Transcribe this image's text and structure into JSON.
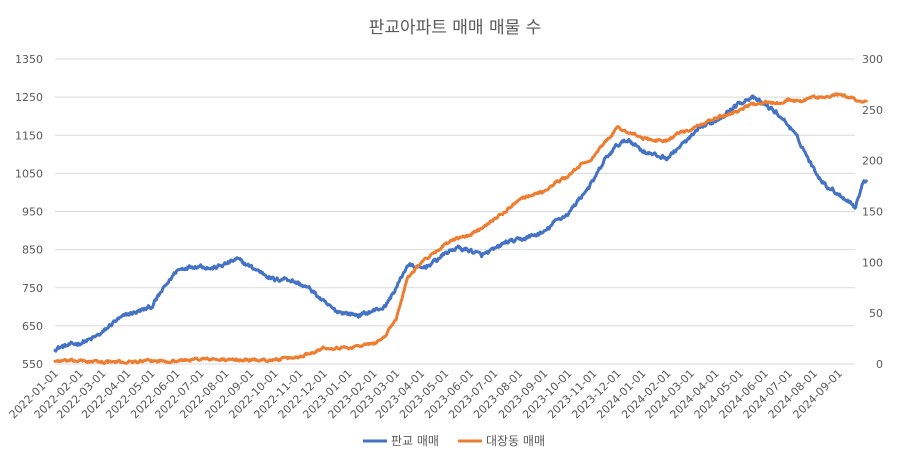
{
  "chart_data": {
    "type": "line",
    "title": "판교아파트 매매 매물 수",
    "xlabel": "",
    "ylabel": "",
    "x_ticks": [
      "2022-01-01",
      "2022-02-01",
      "2022-03-01",
      "2022-04-01",
      "2022-05-01",
      "2022-06-01",
      "2022-07-01",
      "2022-08-01",
      "2022-09-01",
      "2022-10-01",
      "2022-11-01",
      "2022-12-01",
      "2023-01-01",
      "2023-02-01",
      "2023-03-01",
      "2023-04-01",
      "2023-05-01",
      "2023-06-01",
      "2023-07-01",
      "2023-08-01",
      "2023-09-01",
      "2023-10-01",
      "2023-11-01",
      "2023-12-01",
      "2024-01-01",
      "2024-02-01",
      "2024-03-01",
      "2024-04-01",
      "2024-05-01",
      "2024-06-01",
      "2024-07-01",
      "2024-08-01",
      "2024-09-01"
    ],
    "x_range": [
      "2022-01-01",
      "2024-09-21"
    ],
    "y_left": {
      "ticks": [
        550,
        650,
        750,
        850,
        950,
        1050,
        1150,
        1250,
        1350
      ],
      "ylim": [
        550,
        1350
      ]
    },
    "y_right": {
      "ticks": [
        0,
        50,
        100,
        150,
        200,
        250,
        300
      ],
      "ylim": [
        0,
        300
      ]
    },
    "grid": true,
    "legend_position": "bottom",
    "series": [
      {
        "name": "판교 매매",
        "axis": "left",
        "color": "#4472C4",
        "points": [
          [
            "2022-01-01",
            590
          ],
          [
            "2022-01-15",
            598
          ],
          [
            "2022-02-01",
            605
          ],
          [
            "2022-02-15",
            615
          ],
          [
            "2022-03-01",
            632
          ],
          [
            "2022-03-15",
            660
          ],
          [
            "2022-04-01",
            680
          ],
          [
            "2022-04-15",
            688
          ],
          [
            "2022-05-01",
            700
          ],
          [
            "2022-05-15",
            745
          ],
          [
            "2022-06-01",
            795
          ],
          [
            "2022-06-15",
            805
          ],
          [
            "2022-07-01",
            808
          ],
          [
            "2022-07-15",
            800
          ],
          [
            "2022-08-01",
            812
          ],
          [
            "2022-08-15",
            825
          ],
          [
            "2022-09-01",
            805
          ],
          [
            "2022-09-15",
            790
          ],
          [
            "2022-10-01",
            770
          ],
          [
            "2022-10-15",
            775
          ],
          [
            "2022-11-01",
            760
          ],
          [
            "2022-11-15",
            745
          ],
          [
            "2022-12-01",
            712
          ],
          [
            "2022-12-15",
            690
          ],
          [
            "2023-01-01",
            682
          ],
          [
            "2023-01-15",
            678
          ],
          [
            "2023-02-01",
            690
          ],
          [
            "2023-02-15",
            700
          ],
          [
            "2023-03-01",
            750
          ],
          [
            "2023-03-15",
            810
          ],
          [
            "2023-04-01",
            800
          ],
          [
            "2023-04-15",
            815
          ],
          [
            "2023-05-01",
            840
          ],
          [
            "2023-05-15",
            855
          ],
          [
            "2023-06-01",
            848
          ],
          [
            "2023-06-15",
            835
          ],
          [
            "2023-07-01",
            850
          ],
          [
            "2023-07-15",
            870
          ],
          [
            "2023-08-01",
            875
          ],
          [
            "2023-08-15",
            885
          ],
          [
            "2023-09-01",
            895
          ],
          [
            "2023-09-15",
            925
          ],
          [
            "2023-10-01",
            945
          ],
          [
            "2023-10-15",
            985
          ],
          [
            "2023-11-01",
            1030
          ],
          [
            "2023-11-15",
            1085
          ],
          [
            "2023-12-01",
            1125
          ],
          [
            "2023-12-15",
            1138
          ],
          [
            "2024-01-01",
            1110
          ],
          [
            "2024-01-15",
            1098
          ],
          [
            "2024-02-01",
            1090
          ],
          [
            "2024-02-15",
            1118
          ],
          [
            "2024-03-01",
            1145
          ],
          [
            "2024-03-15",
            1172
          ],
          [
            "2024-04-01",
            1188
          ],
          [
            "2024-04-15",
            1210
          ],
          [
            "2024-05-01",
            1235
          ],
          [
            "2024-05-15",
            1250
          ],
          [
            "2024-06-01",
            1230
          ],
          [
            "2024-06-15",
            1210
          ],
          [
            "2024-07-01",
            1175
          ],
          [
            "2024-07-15",
            1130
          ],
          [
            "2024-08-01",
            1060
          ],
          [
            "2024-08-15",
            1020
          ],
          [
            "2024-09-01",
            995
          ],
          [
            "2024-09-15",
            975
          ],
          [
            "2024-09-21",
            960
          ],
          [
            "2024-10-01",
            1025
          ],
          [
            "2024-10-15",
            1050
          ],
          [
            "2024-10-25",
            1068
          ]
        ]
      },
      {
        "name": "대장동 매매",
        "axis": "right",
        "color": "#ED7D31",
        "points": [
          [
            "2022-01-01",
            3
          ],
          [
            "2022-02-01",
            3
          ],
          [
            "2022-03-01",
            2
          ],
          [
            "2022-04-01",
            2
          ],
          [
            "2022-05-01",
            3
          ],
          [
            "2022-06-01",
            3
          ],
          [
            "2022-07-01",
            5
          ],
          [
            "2022-08-01",
            4
          ],
          [
            "2022-09-01",
            4
          ],
          [
            "2022-10-01",
            4
          ],
          [
            "2022-11-01",
            7
          ],
          [
            "2022-12-01",
            16
          ],
          [
            "2023-01-01",
            16
          ],
          [
            "2023-01-15",
            18
          ],
          [
            "2023-02-01",
            20
          ],
          [
            "2023-02-15",
            27
          ],
          [
            "2023-03-01",
            45
          ],
          [
            "2023-03-15",
            85
          ],
          [
            "2023-04-01",
            100
          ],
          [
            "2023-04-15",
            108
          ],
          [
            "2023-05-01",
            118
          ],
          [
            "2023-05-15",
            123
          ],
          [
            "2023-06-01",
            127
          ],
          [
            "2023-06-15",
            134
          ],
          [
            "2023-07-01",
            143
          ],
          [
            "2023-07-15",
            150
          ],
          [
            "2023-08-01",
            163
          ],
          [
            "2023-08-15",
            166
          ],
          [
            "2023-09-01",
            170
          ],
          [
            "2023-09-15",
            178
          ],
          [
            "2023-10-01",
            185
          ],
          [
            "2023-10-15",
            195
          ],
          [
            "2023-11-01",
            203
          ],
          [
            "2023-11-15",
            218
          ],
          [
            "2023-12-01",
            232
          ],
          [
            "2023-12-15",
            228
          ],
          [
            "2024-01-01",
            222
          ],
          [
            "2024-01-15",
            220
          ],
          [
            "2024-02-01",
            220
          ],
          [
            "2024-02-15",
            227
          ],
          [
            "2024-03-01",
            230
          ],
          [
            "2024-03-15",
            236
          ],
          [
            "2024-04-01",
            242
          ],
          [
            "2024-04-15",
            245
          ],
          [
            "2024-05-01",
            250
          ],
          [
            "2024-05-15",
            255
          ],
          [
            "2024-06-01",
            258
          ],
          [
            "2024-06-15",
            256
          ],
          [
            "2024-07-01",
            260
          ],
          [
            "2024-07-15",
            258
          ],
          [
            "2024-08-01",
            263
          ],
          [
            "2024-08-15",
            262
          ],
          [
            "2024-09-01",
            265
          ],
          [
            "2024-09-15",
            262
          ],
          [
            "2024-10-01",
            258
          ],
          [
            "2024-10-15",
            257
          ],
          [
            "2024-10-25",
            270
          ]
        ]
      }
    ]
  }
}
